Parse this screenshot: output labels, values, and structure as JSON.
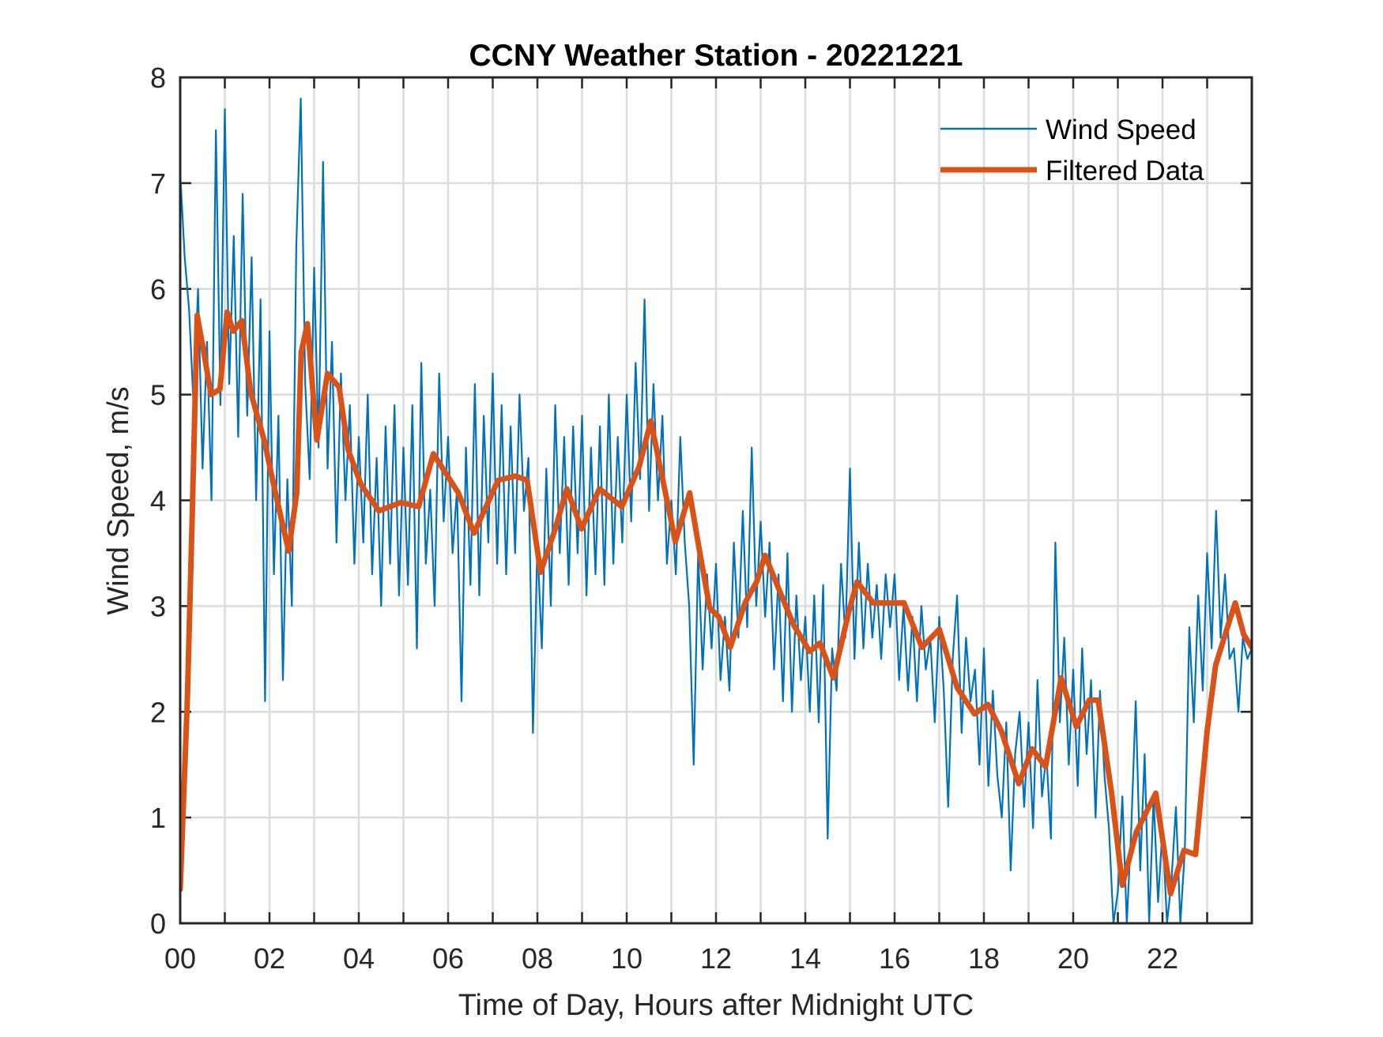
{
  "chart_data": {
    "type": "line",
    "title": "CCNY Weather Station - 20221221",
    "xlabel": "Time of Day, Hours after Midnight UTC",
    "ylabel": "Wind Speed, m/s",
    "xlim": [
      0,
      24
    ],
    "ylim": [
      0,
      8
    ],
    "grid": true,
    "x_grid_step_hours": 1,
    "x_ticks": [
      0,
      2,
      4,
      6,
      8,
      10,
      12,
      14,
      16,
      18,
      20,
      22
    ],
    "x_tick_labels": [
      "00",
      "02",
      "04",
      "06",
      "08",
      "10",
      "12",
      "14",
      "16",
      "18",
      "20",
      "22"
    ],
    "y_ticks": [
      0,
      1,
      2,
      3,
      4,
      5,
      6,
      7,
      8
    ],
    "y_tick_labels": [
      "0",
      "1",
      "2",
      "3",
      "4",
      "5",
      "6",
      "7",
      "8"
    ],
    "legend": {
      "placement": "top-right",
      "boxed": false
    },
    "series": [
      {
        "name": "Wind Speed",
        "color": "#0072BD",
        "x_start": 0,
        "x_step": 0.1,
        "values": [
          7.1,
          6.3,
          5.8,
          4.9,
          6.0,
          4.3,
          5.5,
          4.0,
          7.5,
          4.9,
          7.7,
          5.1,
          6.5,
          4.6,
          6.9,
          4.8,
          6.3,
          4.0,
          5.9,
          2.1,
          5.6,
          3.3,
          4.8,
          2.3,
          4.2,
          3.0,
          6.4,
          7.8,
          5.1,
          4.2,
          6.2,
          4.5,
          7.2,
          4.3,
          5.5,
          3.6,
          5.2,
          4.0,
          4.9,
          3.4,
          4.6,
          3.6,
          5.0,
          3.3,
          4.4,
          3.0,
          4.7,
          3.4,
          4.9,
          3.1,
          4.5,
          3.2,
          4.9,
          2.6,
          5.3,
          3.4,
          4.1,
          3.0,
          5.2,
          3.8,
          4.6,
          3.5,
          4.1,
          2.1,
          4.5,
          3.2,
          5.1,
          3.1,
          4.8,
          3.6,
          5.2,
          3.4,
          4.9,
          3.3,
          4.7,
          3.5,
          5.0,
          3.9,
          4.4,
          1.8,
          3.6,
          2.6,
          4.3,
          3.0,
          4.9,
          3.5,
          4.6,
          3.2,
          4.7,
          3.5,
          4.8,
          3.1,
          4.5,
          3.3,
          4.7,
          3.2,
          5.0,
          3.4,
          4.6,
          3.6,
          5.0,
          3.8,
          5.3,
          4.2,
          5.9,
          3.9,
          5.1,
          4.0,
          4.8,
          3.4,
          4.0,
          3.3,
          4.6,
          3.6,
          3.0,
          1.5,
          3.5,
          2.4,
          3.3,
          2.6,
          3.4,
          2.3,
          2.9,
          2.2,
          3.6,
          2.7,
          3.9,
          2.8,
          4.5,
          3.0,
          3.8,
          2.9,
          3.6,
          2.4,
          3.3,
          2.1,
          3.5,
          2.0,
          3.1,
          2.3,
          2.9,
          2.0,
          3.1,
          1.9,
          3.2,
          0.8,
          2.6,
          2.2,
          3.4,
          2.7,
          4.3,
          2.5,
          3.6,
          2.6,
          3.4,
          2.7,
          3.2,
          2.5,
          3.3,
          2.8,
          3.3,
          2.3,
          3.0,
          2.2,
          2.9,
          2.1,
          3.0,
          2.4,
          2.7,
          1.9,
          2.9,
          2.2,
          1.1,
          2.5,
          3.1,
          1.8,
          2.7,
          2.1,
          2.4,
          1.5,
          2.6,
          1.3,
          2.2,
          1.4,
          1.0,
          1.9,
          0.5,
          1.6,
          2.0,
          1.1,
          1.9,
          0.9,
          2.3,
          1.2,
          1.6,
          0.8,
          3.6,
          1.9,
          2.7,
          1.5,
          2.4,
          1.3,
          2.6,
          1.6,
          2.3,
          1.0,
          2.2,
          1.4,
          0.9,
          0.0,
          0.3,
          1.2,
          0.0,
          0.9,
          2.1,
          0.5,
          1.6,
          0.0,
          1.2,
          0.2,
          0.9,
          0.0,
          0.4,
          1.1,
          0.0,
          0.7,
          2.8,
          1.9,
          3.1,
          2.2,
          3.5,
          2.6,
          3.9,
          2.7,
          3.3,
          2.5,
          2.6,
          2.0,
          2.7,
          2.5,
          2.6
        ]
      },
      {
        "name": "Filtered Data",
        "color": "#D95319",
        "x": [
          0,
          0.16,
          0.26,
          0.38,
          0.53,
          0.69,
          0.89,
          1.05,
          1.19,
          1.38,
          1.58,
          1.88,
          2.17,
          2.43,
          2.61,
          2.71,
          2.85,
          3.06,
          3.3,
          3.56,
          3.76,
          4.05,
          4.45,
          4.94,
          5.34,
          5.67,
          6.23,
          6.58,
          7.12,
          7.51,
          7.77,
          8.07,
          8.4,
          8.66,
          8.99,
          9.39,
          9.89,
          10.28,
          10.54,
          10.81,
          11.09,
          11.41,
          11.61,
          11.86,
          12.06,
          12.32,
          12.65,
          12.91,
          13.1,
          13.34,
          13.74,
          14.1,
          14.33,
          14.63,
          14.97,
          15.16,
          15.52,
          16.21,
          16.61,
          17.0,
          17.4,
          17.79,
          18.09,
          18.39,
          18.78,
          19.08,
          19.38,
          19.73,
          20.07,
          20.36,
          20.56,
          20.86,
          21.1,
          21.41,
          21.85,
          22.18,
          22.48,
          22.74,
          23.0,
          23.19,
          23.53,
          23.63,
          23.82,
          24.0
        ],
        "values": [
          0.32,
          2.1,
          3.7,
          5.75,
          5.4,
          5.0,
          5.05,
          5.78,
          5.6,
          5.7,
          5.02,
          4.57,
          4.0,
          3.52,
          4.07,
          5.4,
          5.67,
          4.57,
          5.2,
          5.07,
          4.48,
          4.15,
          3.9,
          3.98,
          3.94,
          4.44,
          4.07,
          3.69,
          4.19,
          4.23,
          4.19,
          3.32,
          3.73,
          4.11,
          3.73,
          4.11,
          3.94,
          4.32,
          4.75,
          4.19,
          3.61,
          4.07,
          3.57,
          2.98,
          2.9,
          2.61,
          3.03,
          3.23,
          3.48,
          3.23,
          2.82,
          2.57,
          2.65,
          2.32,
          2.94,
          3.23,
          3.03,
          3.03,
          2.61,
          2.78,
          2.23,
          1.98,
          2.07,
          1.82,
          1.32,
          1.65,
          1.48,
          2.32,
          1.86,
          2.11,
          2.11,
          1.23,
          0.36,
          0.86,
          1.23,
          0.28,
          0.69,
          0.65,
          1.82,
          2.44,
          2.9,
          3.03,
          2.73,
          2.61
        ]
      }
    ]
  }
}
